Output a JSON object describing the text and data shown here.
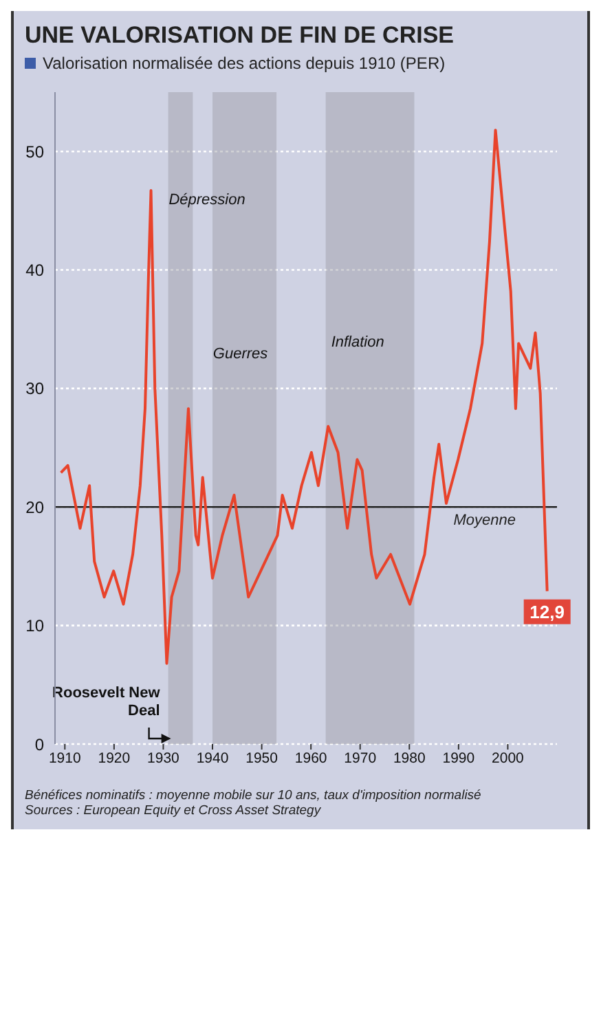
{
  "chart_data": {
    "type": "line",
    "title": "UNE VALORISATION DE FIN DE CRISE",
    "subtitle": "Valorisation normalisée des actions depuis 1910 (PER)",
    "x": [
      1909.2,
      1910.6,
      1913.1,
      1915.0,
      1916.0,
      1918.0,
      1919.9,
      1921.9,
      1923.8,
      1925.3,
      1926.3,
      1927.0,
      1927.5,
      1928.3,
      1929.7,
      1930.7,
      1931.7,
      1933.2,
      1935.1,
      1936.6,
      1937.1,
      1938.0,
      1940.0,
      1942.0,
      1944.4,
      1947.3,
      1949.8,
      1953.2,
      1954.2,
      1956.2,
      1958.1,
      1960.1,
      1961.5,
      1963.5,
      1965.5,
      1967.4,
      1969.4,
      1970.4,
      1972.3,
      1973.3,
      1976.2,
      1980.1,
      1983.1,
      1985.0,
      1986.0,
      1987.5,
      1989.9,
      1992.4,
      1994.8,
      1996.3,
      1997.5,
      2000.6,
      2001.6,
      2002.2,
      2004.6,
      2005.6,
      2006.6,
      2008.0
    ],
    "values": [
      22.9,
      23.5,
      18.2,
      21.8,
      15.4,
      12.4,
      14.6,
      11.8,
      16.0,
      21.8,
      28.3,
      39.6,
      46.7,
      30.0,
      17.6,
      6.8,
      12.4,
      14.6,
      28.3,
      17.6,
      16.8,
      22.5,
      14.0,
      17.6,
      21.0,
      12.4,
      14.6,
      17.6,
      21.0,
      18.2,
      21.8,
      24.6,
      21.8,
      26.8,
      24.6,
      18.2,
      24.0,
      23.1,
      16.0,
      14.0,
      16.0,
      11.8,
      16.0,
      22.5,
      25.3,
      20.3,
      24.0,
      28.3,
      33.8,
      42.4,
      51.8,
      38.2,
      28.3,
      33.8,
      31.7,
      34.7,
      29.6,
      12.9
    ],
    "value_labels": [
      null,
      null,
      null,
      null,
      null,
      null,
      null,
      null,
      null,
      null,
      null,
      null,
      null,
      null,
      null,
      null,
      null,
      null,
      null,
      null,
      null,
      null,
      null,
      null,
      null,
      null,
      null,
      null,
      null,
      null,
      null,
      null,
      null,
      null,
      null,
      null,
      null,
      null,
      null,
      null,
      null,
      null,
      null,
      null,
      null,
      null,
      null,
      null,
      null,
      null,
      null,
      null,
      null,
      null,
      null,
      null,
      null,
      "12,9"
    ],
    "color": "#e8432b",
    "xlim": [
      1908,
      2010
    ],
    "xticks": [
      1910,
      1920,
      1930,
      1940,
      1950,
      1960,
      1970,
      1980,
      1990,
      2000
    ],
    "ylim": [
      0,
      55
    ],
    "yticks": [
      0,
      10,
      20,
      30,
      40,
      50
    ],
    "grid": "y",
    "ref_lines": [
      {
        "axis": "y",
        "value": 20,
        "label": "Moyenne",
        "color": "#222222"
      }
    ],
    "bands": [
      {
        "axis": "x",
        "from": 1931,
        "to": 1936,
        "label": "Roosevelt New Deal",
        "color": "#9c9ca4"
      },
      {
        "axis": "x",
        "from": 1940,
        "to": 1953,
        "color": "#9c9ca4"
      },
      {
        "axis": "x",
        "from": 1963,
        "to": 1981,
        "color": "#9c9ca4"
      }
    ],
    "annotations": [
      {
        "text": "Dépression",
        "x": 1930,
        "y": 46
      },
      {
        "text": "Guerres",
        "x": 1939,
        "y": 33
      },
      {
        "text": "Inflation",
        "x": 1963,
        "y": 34
      },
      "Bénéfices nominatifs : moyenne mobile sur 10 ans, taux d'imposition normalisé",
      "Sources : European Equity et Cross Asset Strategy"
    ]
  }
}
